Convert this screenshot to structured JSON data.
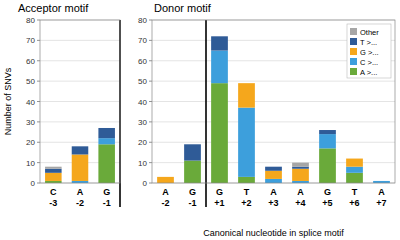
{
  "chart_data": [
    {
      "type": "bar",
      "title": "Acceptor motif",
      "y_label": "Number of SNVs",
      "stacked": true,
      "grid": true,
      "categories": [
        "C -3",
        "A -2",
        "G -1"
      ],
      "series": [
        {
          "color": "#6aaa3a",
          "values": [
            1,
            0,
            19
          ]
        },
        {
          "color": "#3d9fdc",
          "values": [
            0,
            1,
            3
          ]
        },
        {
          "color": "#f5a71c",
          "values": [
            4,
            13,
            0
          ]
        },
        {
          "color": "#2f5b97",
          "values": [
            2,
            4,
            5
          ]
        },
        {
          "color": "#a6a6a6",
          "values": [
            1,
            0,
            0
          ]
        }
      ],
      "ylim": [
        0,
        80
      ],
      "yticks": [
        0,
        10,
        20,
        30,
        40,
        50,
        60,
        70,
        80
      ]
    },
    {
      "type": "bar",
      "title": "Donor motif",
      "x_label": "Canonical nucleotide in splice motif",
      "stacked": true,
      "grid": true,
      "legend": "top-right",
      "categories": [
        "A -2",
        "G -1",
        "G +1",
        "T +2",
        "A +3",
        "A +4",
        "G +5",
        "T +6",
        "A +7"
      ],
      "series": [
        {
          "name": "A >...",
          "color": "#6aaa3a",
          "values": [
            0,
            11,
            49,
            3,
            0,
            0,
            17,
            5,
            0
          ]
        },
        {
          "name": "C >...",
          "color": "#3d9fdc",
          "values": [
            0,
            0,
            16,
            34,
            2,
            1,
            7,
            3,
            1
          ]
        },
        {
          "name": "G >...",
          "color": "#f5a71c",
          "values": [
            3,
            0,
            0,
            12,
            4,
            6,
            0,
            4,
            0
          ]
        },
        {
          "name": "T >...",
          "color": "#2f5b97",
          "values": [
            0,
            8,
            7,
            0,
            2,
            1,
            2,
            0,
            0
          ]
        },
        {
          "name": "Other",
          "color": "#a6a6a6",
          "values": [
            0,
            0,
            0,
            0,
            0,
            2,
            0,
            0,
            0
          ]
        }
      ],
      "ylim": [
        0,
        80
      ],
      "yticks": [
        0,
        10,
        20,
        30,
        40,
        50,
        60,
        70,
        80
      ]
    }
  ]
}
